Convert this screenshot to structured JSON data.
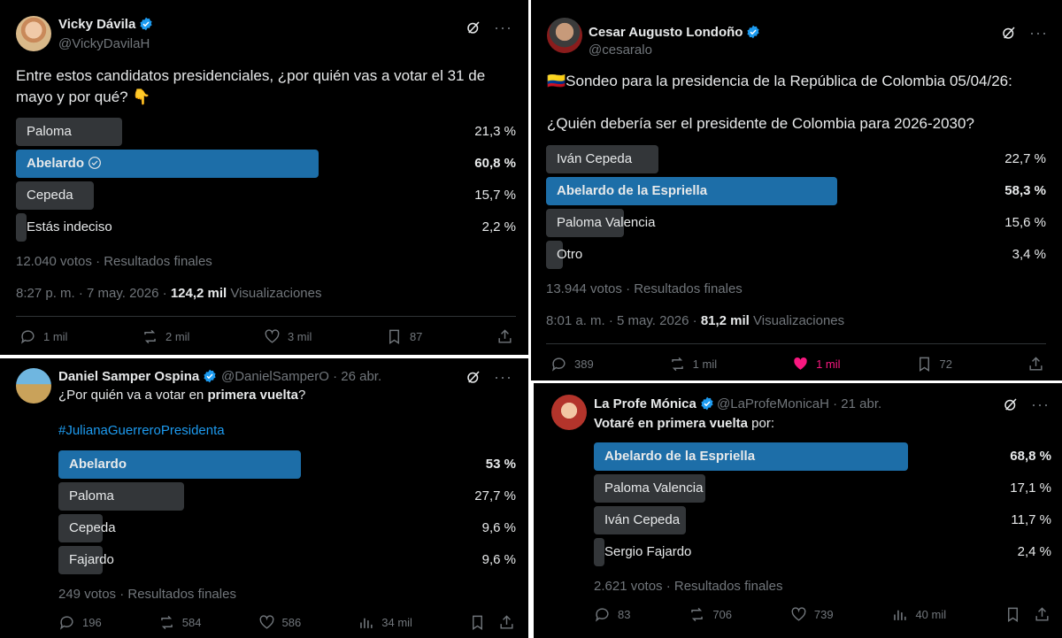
{
  "tweets": [
    {
      "author": "Vicky Dávila",
      "handle": "@VickyDavilaH",
      "text": "Entre estos candidatos presidenciales, ¿por quién vas a votar el 31 de mayo y por qué? 👇",
      "poll": [
        {
          "label": "Paloma",
          "pct": "21,3 %",
          "value": 21.3
        },
        {
          "label": "Abelardo",
          "pct": "60,8 %",
          "value": 60.8,
          "winner": true
        },
        {
          "label": "Cepeda",
          "pct": "15,7 %",
          "value": 15.7
        },
        {
          "label": "Estás indeciso",
          "pct": "2,2 %",
          "value": 2.2
        }
      ],
      "votes": "12.040 votos · Resultados finales",
      "time": "8:27 p. m. · 7 may. 2026 · ",
      "views_count": "124,2 mil",
      "views_label": " Visualizaciones",
      "replies": "1 mil",
      "reposts": "2 mil",
      "likes": "3 mil",
      "bookmarks": "87"
    },
    {
      "author": "Cesar Augusto Londoño",
      "handle": "@cesaralo",
      "flag": "🇨🇴",
      "text_line1": "Sondeo para la presidencia de la República de Colombia 05/04/26:",
      "text_line2": "¿Quién debería ser el presidente de Colombia para 2026-2030?",
      "poll": [
        {
          "label": "Iván Cepeda",
          "pct": "22,7 %",
          "value": 22.7
        },
        {
          "label": "Abelardo de la Espriella",
          "pct": "58,3 %",
          "value": 58.3,
          "winner": true
        },
        {
          "label": "Paloma Valencia",
          "pct": "15,6 %",
          "value": 15.6
        },
        {
          "label": "Otro",
          "pct": "3,4 %",
          "value": 3.4
        }
      ],
      "votes": "13.944 votos · Resultados finales",
      "time": "8:01 a. m. · 5 may. 2026 · ",
      "views_count": "81,2 mil",
      "views_label": " Visualizaciones",
      "replies": "389",
      "reposts": "1 mil",
      "likes": "1 mil",
      "bookmarks": "72"
    },
    {
      "author": "Daniel Samper Ospina",
      "handle": "@DanielSamperO · 26 abr.",
      "text_pre": "¿Por quién va a votar en ",
      "text_bold": "primera vuelta",
      "text_post": "?",
      "hashtag": "#JulianaGuerreroPresidenta",
      "poll": [
        {
          "label": "Abelardo",
          "pct": "53 %",
          "value": 53,
          "winner": true
        },
        {
          "label": "Paloma",
          "pct": "27,7 %",
          "value": 27.7
        },
        {
          "label": "Cepeda",
          "pct": "9,6 %",
          "value": 9.6
        },
        {
          "label": "Fajardo",
          "pct": "9,6 %",
          "value": 9.6
        }
      ],
      "votes": "249 votos · Resultados finales",
      "replies": "196",
      "reposts": "584",
      "likes": "586",
      "views": "34 mil"
    },
    {
      "author": "La Profe Mónica",
      "handle": "@LaProfeMonicaH · 21 abr.",
      "text_bold": "Votaré en primera vuelta",
      "text_post": " por:",
      "poll": [
        {
          "label": "Abelardo de la Espriella",
          "pct": "68,8 %",
          "value": 68.8,
          "winner": true
        },
        {
          "label": "Paloma Valencia",
          "pct": "17,1 %",
          "value": 17.1
        },
        {
          "label": "Iván Cepeda",
          "pct": "11,7 %",
          "value": 11.7
        },
        {
          "label": "Sergio Fajardo",
          "pct": "2,4 %",
          "value": 2.4
        }
      ],
      "votes": "2.621 votos · Resultados finales",
      "replies": "83",
      "reposts": "706",
      "likes": "739",
      "views": "40 mil"
    }
  ],
  "colors": {
    "winner_bar": "#1d6ea8",
    "loser_bar": "#333639",
    "verified": "#1d9bf0",
    "like": "#f91880"
  }
}
